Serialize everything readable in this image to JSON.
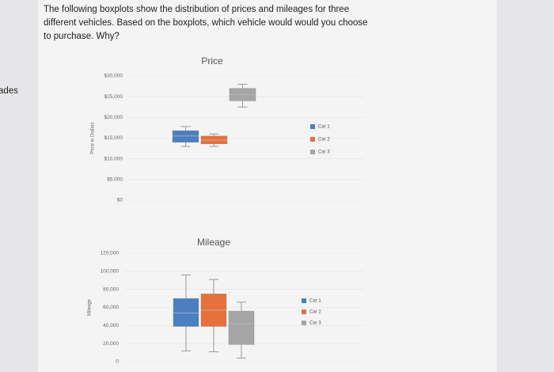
{
  "question": "The following boxplots show the distribution of prices and mileages for three different vehicles. Based on the boxplots, which vehicle would would you choose to purchase. Why?",
  "sidebar_fragment": "ades",
  "chart_data": [
    {
      "type": "boxplot",
      "title": "Price",
      "y_label": "Price in Dollars",
      "ylim": [
        0,
        30000
      ],
      "yticks": [
        {
          "value": 0,
          "label": "$0"
        },
        {
          "value": 5000,
          "label": "$5,000"
        },
        {
          "value": 10000,
          "label": "$10,000"
        },
        {
          "value": 15000,
          "label": "$15,000"
        },
        {
          "value": 20000,
          "label": "$20,000"
        },
        {
          "value": 25000,
          "label": "$25,000"
        },
        {
          "value": 30000,
          "label": "$30,000"
        }
      ],
      "series": [
        {
          "name": "Car 1",
          "color": "#4a7fc1",
          "whisker_low": 13000,
          "q1": 14000,
          "median": 15500,
          "q3": 16800,
          "whisker_high": 17800
        },
        {
          "name": "Car 2",
          "color": "#e8703a",
          "whisker_low": 13000,
          "q1": 13600,
          "median": 14500,
          "q3": 15500,
          "whisker_high": 16000
        },
        {
          "name": "Car 3",
          "color": "#a5a5a5",
          "whisker_low": 22500,
          "q1": 24000,
          "median": 25500,
          "q3": 27000,
          "whisker_high": 28000
        }
      ]
    },
    {
      "type": "boxplot",
      "title": "Mileage",
      "y_label": "Mileage",
      "ylim": [
        0,
        120000
      ],
      "yticks": [
        0,
        {
          "value": 20000,
          "label": "20,000"
        },
        {
          "value": 40000,
          "label": "40,000"
        },
        {
          "value": 60000,
          "label": "60,000"
        },
        {
          "value": 80000,
          "label": "80,000"
        },
        {
          "value": 100000,
          "label": "100,000"
        },
        {
          "value": 120000,
          "label": "120,000"
        }
      ],
      "series": [
        {
          "name": "Car 1",
          "color": "#4a7fc1",
          "whisker_low": 12000,
          "q1": 39000,
          "median": 54000,
          "q3": 70000,
          "whisker_high": 96000
        },
        {
          "name": "Car 2",
          "color": "#e8703a",
          "whisker_low": 11000,
          "q1": 39000,
          "median": 57000,
          "q3": 75000,
          "whisker_high": 91000
        },
        {
          "name": "Car 3",
          "color": "#a5a5a5",
          "whisker_low": 4000,
          "q1": 19000,
          "median": 42000,
          "q3": 56000,
          "whisker_high": 66000
        }
      ]
    }
  ]
}
